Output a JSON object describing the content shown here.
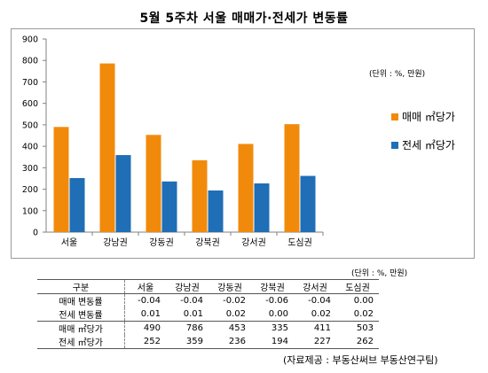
{
  "title": "5월 5주차 서울 매매가·전세가 변동률",
  "chart_unit": "(단위 : %, 만원)",
  "table_unit": "(단위 : %, 만원)",
  "source": "(자료제공 : 부동산써브 부동산연구팀)",
  "colors": {
    "sale": "#F18A0B",
    "lease": "#1F6EB6"
  },
  "chart_data": {
    "type": "bar",
    "categories": [
      "서울",
      "강남권",
      "강동권",
      "강북권",
      "강서권",
      "도심권"
    ],
    "series": [
      {
        "name": "매매 ㎡당가",
        "values": [
          490,
          786,
          453,
          335,
          411,
          503
        ]
      },
      {
        "name": "전세 ㎡당가",
        "values": [
          252,
          359,
          236,
          194,
          227,
          262
        ]
      }
    ],
    "ylim": [
      0,
      900
    ],
    "yticks": [
      "0",
      "100",
      "200",
      "300",
      "400",
      "500",
      "600",
      "700",
      "800",
      "900"
    ],
    "legend": "right"
  },
  "table": {
    "header": [
      "구분",
      "서울",
      "강남권",
      "강동권",
      "강북권",
      "강서권",
      "도심권"
    ],
    "rows": [
      [
        "매매 변동률",
        "-0.04",
        "-0.04",
        "-0.02",
        "-0.06",
        "-0.04",
        "0.00"
      ],
      [
        "전세 변동률",
        "0.01",
        "0.01",
        "0.02",
        "0.00",
        "0.02",
        "0.02"
      ],
      [
        "매매 ㎡당가",
        "490",
        "786",
        "453",
        "335",
        "411",
        "503"
      ],
      [
        "전세 ㎡당가",
        "252",
        "359",
        "236",
        "194",
        "227",
        "262"
      ]
    ]
  }
}
